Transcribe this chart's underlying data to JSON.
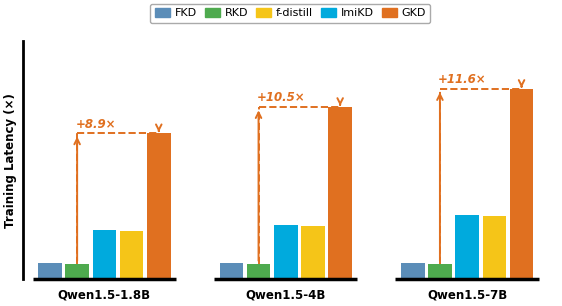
{
  "groups": [
    "Qwen1.5-1.8B",
    "Qwen1.5-4B",
    "Qwen1.5-7B"
  ],
  "methods": [
    "FKD",
    "RKD",
    "ImiKD",
    "f-distill",
    "GKD"
  ],
  "bar_order_colors": [
    "#5B8DB8",
    "#4EAA4E",
    "#00AADD",
    "#F5C518",
    "#E07020"
  ],
  "values": [
    [
      1.0,
      0.9,
      3.0,
      2.95,
      8.9
    ],
    [
      1.0,
      0.9,
      3.3,
      3.25,
      10.5
    ],
    [
      1.0,
      0.9,
      3.9,
      3.85,
      11.6
    ]
  ],
  "legend_labels": [
    "FKD",
    "RKD",
    "f-distill",
    "ImiKD",
    "GKD"
  ],
  "legend_colors": [
    "#5B8DB8",
    "#4EAA4E",
    "#F5C518",
    "#00AADD",
    "#E07020"
  ],
  "annotations": [
    "+8.9×",
    "+10.5×",
    "+11.6×"
  ],
  "annotation_color": "#E07020",
  "ylabel": "Training Latency (×)",
  "ylim": [
    0,
    14.5
  ],
  "bar_width": 0.13,
  "group_centers": [
    0.0,
    1.0,
    2.0
  ],
  "xlim": [
    -0.45,
    2.5
  ]
}
